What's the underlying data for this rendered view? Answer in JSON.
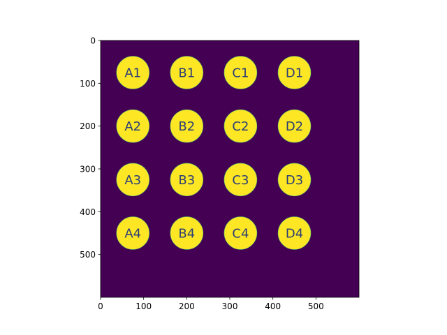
{
  "chart_data": {
    "type": "heatmap",
    "title": "",
    "xlabel": "",
    "ylabel": "",
    "xlim": [
      0,
      600
    ],
    "ylim": [
      600,
      0
    ],
    "x_ticks": [
      0,
      100,
      200,
      300,
      400,
      500
    ],
    "y_ticks": [
      0,
      100,
      200,
      300,
      400,
      500
    ],
    "x_tick_labels": [
      "0",
      "100",
      "200",
      "300",
      "400",
      "500"
    ],
    "y_tick_labels": [
      "0",
      "100",
      "200",
      "300",
      "400",
      "500"
    ],
    "colormap": "viridis",
    "background_color": "#440154",
    "circle_color": "#fde725",
    "label_color": "#2c3e73",
    "circle_radius": 38,
    "circles": [
      {
        "label": "A1",
        "x": 75,
        "y": 75
      },
      {
        "label": "B1",
        "x": 200,
        "y": 75
      },
      {
        "label": "C1",
        "x": 325,
        "y": 75
      },
      {
        "label": "D1",
        "x": 450,
        "y": 75
      },
      {
        "label": "A2",
        "x": 75,
        "y": 200
      },
      {
        "label": "B2",
        "x": 200,
        "y": 200
      },
      {
        "label": "C2",
        "x": 325,
        "y": 200
      },
      {
        "label": "D2",
        "x": 450,
        "y": 200
      },
      {
        "label": "A3",
        "x": 75,
        "y": 325
      },
      {
        "label": "B3",
        "x": 200,
        "y": 325
      },
      {
        "label": "C3",
        "x": 325,
        "y": 325
      },
      {
        "label": "D3",
        "x": 450,
        "y": 325
      },
      {
        "label": "A4",
        "x": 75,
        "y": 450
      },
      {
        "label": "B4",
        "x": 200,
        "y": 450
      },
      {
        "label": "C4",
        "x": 325,
        "y": 450
      },
      {
        "label": "D4",
        "x": 450,
        "y": 450
      }
    ]
  }
}
